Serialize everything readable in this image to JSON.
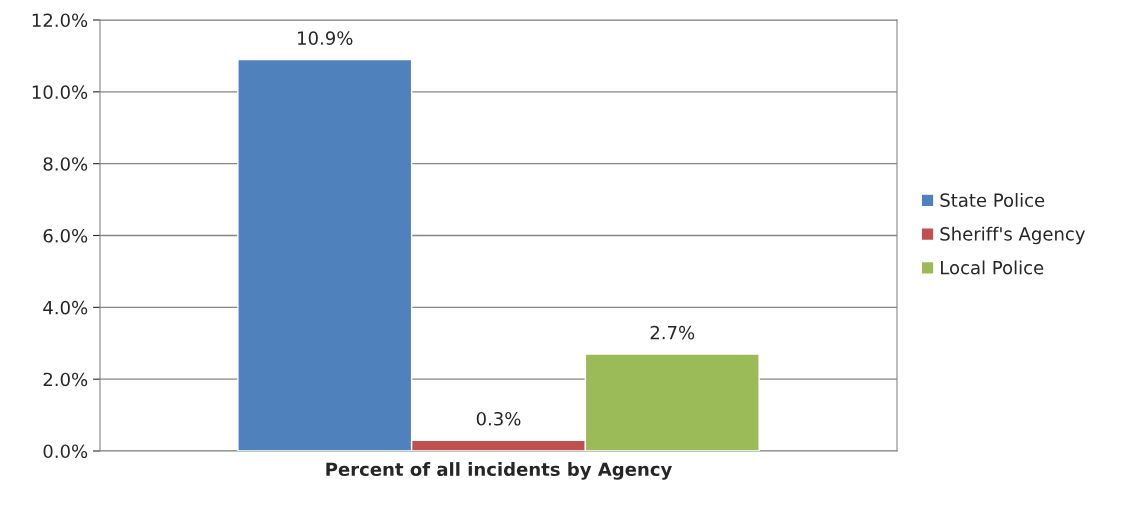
{
  "chart_data": {
    "type": "bar",
    "categories": [
      "Percent of all incidents by Agency"
    ],
    "series": [
      {
        "name": "State Police",
        "color": "#4f81bd",
        "values": [
          10.9
        ],
        "value_labels": [
          "10.9%"
        ]
      },
      {
        "name": "Sheriff's Agency",
        "color": "#c0504d",
        "values": [
          0.3
        ],
        "value_labels": [
          "0.3%"
        ]
      },
      {
        "name": "Local Police",
        "color": "#9bbb59",
        "values": [
          2.7
        ],
        "value_labels": [
          "2.7%"
        ]
      }
    ],
    "ylim": [
      0,
      12
    ],
    "yticks": [
      {
        "value": 0,
        "label": "0.0%"
      },
      {
        "value": 2,
        "label": "2.0%"
      },
      {
        "value": 4,
        "label": "4.0%"
      },
      {
        "value": 6,
        "label": "6.0%"
      },
      {
        "value": 8,
        "label": "8.0%"
      },
      {
        "value": 10,
        "label": "10.0%"
      },
      {
        "value": 12,
        "label": "12.0%"
      }
    ],
    "grid": "y",
    "legend": "right"
  }
}
